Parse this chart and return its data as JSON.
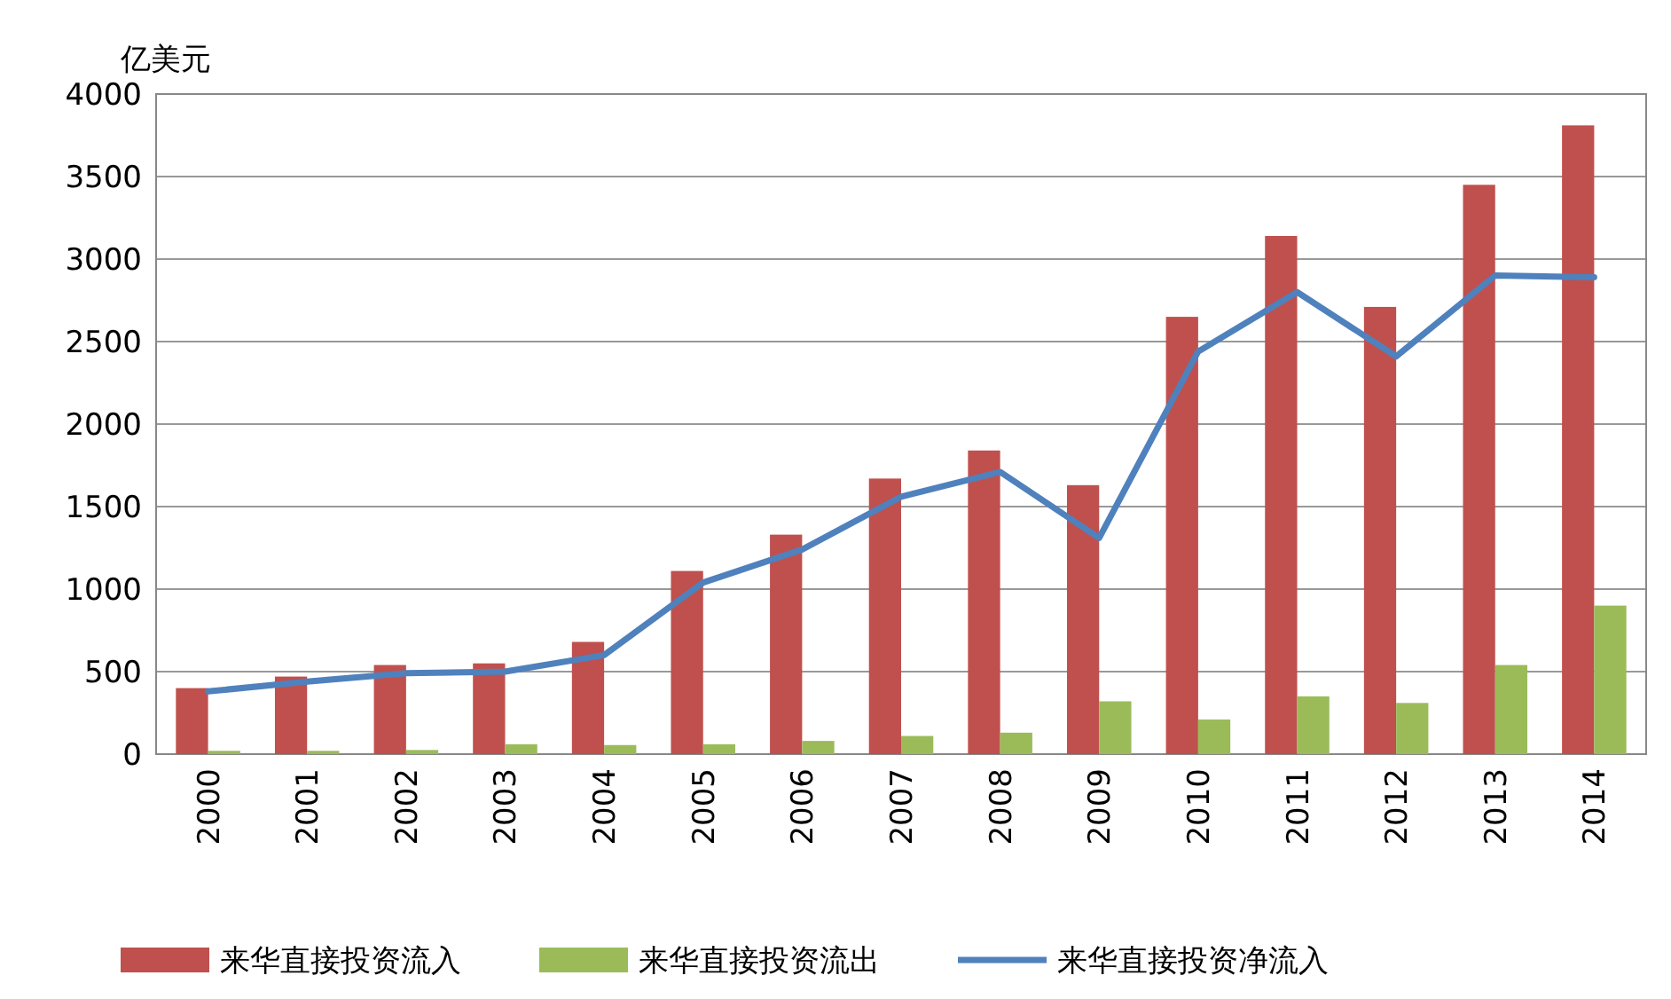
{
  "chart_data": {
    "type": "bar",
    "ylabel": "亿美元",
    "categories": [
      "2000",
      "2001",
      "2002",
      "2003",
      "2004",
      "2005",
      "2006",
      "2007",
      "2008",
      "2009",
      "2010",
      "2011",
      "2012",
      "2013",
      "2014"
    ],
    "series": [
      {
        "name": "来华直接投资流入",
        "color": "#c0504d",
        "values": [
          400,
          470,
          540,
          550,
          680,
          1110,
          1330,
          1670,
          1840,
          1630,
          2650,
          3140,
          2710,
          3450,
          3810
        ]
      },
      {
        "name": "来华直接投资流出",
        "color": "#9bbb59",
        "values": [
          20,
          20,
          25,
          60,
          55,
          60,
          80,
          110,
          130,
          320,
          210,
          350,
          310,
          540,
          900
        ]
      },
      {
        "name": "来华直接投资净流入",
        "type": "line",
        "color": "#4f81bd",
        "values": [
          380,
          440,
          490,
          500,
          600,
          1040,
          1240,
          1560,
          1710,
          1310,
          2440,
          2800,
          2410,
          2900,
          2890
        ]
      }
    ],
    "ylim": [
      0,
      4000
    ],
    "yticks": [
      0,
      500,
      1000,
      1500,
      2000,
      2500,
      3000,
      3500,
      4000
    ],
    "grid": "y",
    "legend": "bottom",
    "marker": "none",
    "line_style": "solid"
  }
}
